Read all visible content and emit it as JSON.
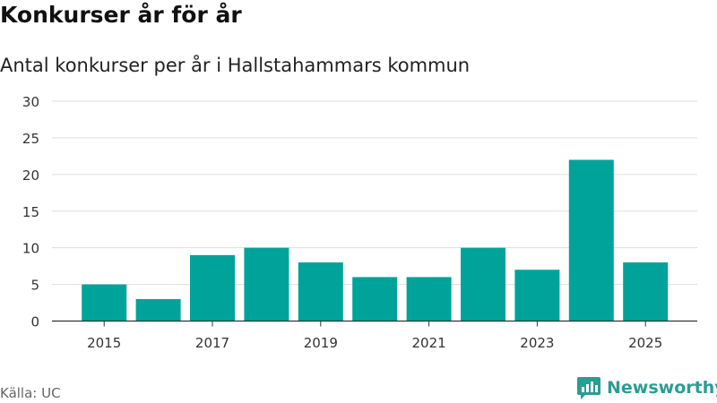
{
  "header": {
    "title": "Konkurser år för år",
    "subtitle": "Antal konkurser per år i Hallstahammars kommun"
  },
  "footer": {
    "source": "Källa: UC",
    "brand": "Newsworthy"
  },
  "colors": {
    "bar": "#00a39a",
    "grid": "#dddddd",
    "axis": "#333333",
    "brand": "#2a9d94"
  },
  "chart_data": {
    "type": "bar",
    "categories": [
      "2015",
      "2016",
      "2017",
      "2018",
      "2019",
      "2020",
      "2021",
      "2022",
      "2023",
      "2024",
      "2025"
    ],
    "values": [
      5,
      3,
      9,
      10,
      8,
      6,
      6,
      10,
      7,
      22,
      8
    ],
    "x_tick_labels": [
      "2015",
      "2017",
      "2019",
      "2021",
      "2023",
      "2025"
    ],
    "y_ticks": [
      0,
      5,
      10,
      15,
      20,
      25,
      30
    ],
    "ylim": [
      0,
      30
    ],
    "grid": true,
    "legend": "none"
  }
}
